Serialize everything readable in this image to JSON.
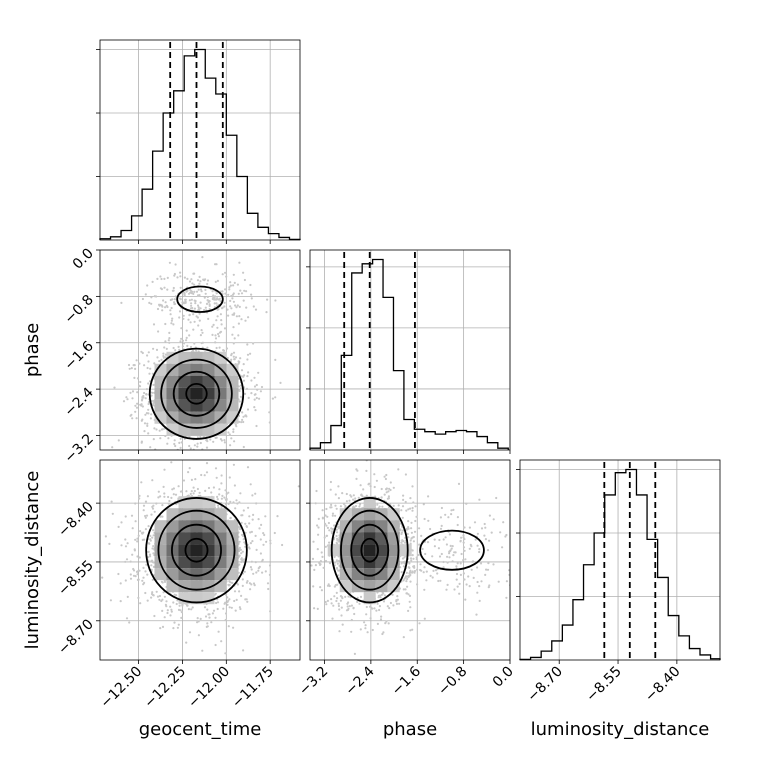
{
  "chart_data": {
    "type": "corner",
    "parameters": [
      "geocent_time",
      "phase",
      "luminosity_distance"
    ],
    "xlabels": [
      "geocent_time",
      "phase",
      "luminosity_distance"
    ],
    "ylabels": [
      "",
      "phase",
      "luminosity_distance"
    ],
    "ranges": {
      "geocent_time": [
        -12.72,
        -11.58
      ],
      "phase": [
        -3.45,
        0.0
      ],
      "luminosity_distance": [
        -8.8,
        -8.29
      ]
    },
    "ticks": {
      "geocent_time": [
        {
          "value": -12.5,
          "label": "−12.50"
        },
        {
          "value": -12.25,
          "label": "−12.25"
        },
        {
          "value": -12.0,
          "label": "−12.00"
        },
        {
          "value": -11.75,
          "label": "−11.75"
        }
      ],
      "phase": [
        {
          "value": -3.2,
          "label": "−3.2"
        },
        {
          "value": -2.4,
          "label": "−2.4"
        },
        {
          "value": -1.6,
          "label": "−1.6"
        },
        {
          "value": -0.8,
          "label": "−0.8"
        },
        {
          "value": 0.0,
          "label": "0.0"
        }
      ],
      "luminosity_distance": [
        {
          "value": -8.7,
          "label": "−8.70"
        },
        {
          "value": -8.55,
          "label": "−8.55"
        },
        {
          "value": -8.4,
          "label": "−8.40"
        }
      ]
    },
    "grid": true,
    "quantiles": {
      "geocent_time": [
        -12.32,
        -12.17,
        -12.02
      ],
      "phase": [
        -2.86,
        -2.42,
        -1.64
      ],
      "luminosity_distance": [
        -8.585,
        -8.52,
        -8.455
      ]
    },
    "histograms": {
      "geocent_time": {
        "edges": [
          -12.72,
          -12.66,
          -12.6,
          -12.54,
          -12.48,
          -12.42,
          -12.36,
          -12.3,
          -12.24,
          -12.18,
          -12.12,
          -12.06,
          -12.0,
          -11.94,
          -11.88,
          -11.82,
          -11.76,
          -11.7,
          -11.64,
          -11.58
        ],
        "counts": [
          2,
          5,
          15,
          38,
          80,
          140,
          200,
          235,
          290,
          300,
          255,
          230,
          165,
          100,
          42,
          20,
          10,
          4,
          1
        ]
      },
      "phase": {
        "edges": [
          -3.45,
          -3.27,
          -3.09,
          -2.91,
          -2.73,
          -2.55,
          -2.37,
          -2.19,
          -2.01,
          -1.83,
          -1.65,
          -1.47,
          -1.29,
          -1.11,
          -0.93,
          -0.75,
          -0.57,
          -0.39,
          -0.21,
          -0.03
        ],
        "counts": [
          3,
          12,
          40,
          155,
          290,
          305,
          312,
          250,
          130,
          50,
          34,
          30,
          26,
          30,
          32,
          30,
          22,
          12,
          3
        ]
      },
      "luminosity_distance": {
        "edges": [
          -8.8,
          -8.773,
          -8.746,
          -8.719,
          -8.692,
          -8.665,
          -8.638,
          -8.611,
          -8.584,
          -8.557,
          -8.53,
          -8.503,
          -8.476,
          -8.449,
          -8.422,
          -8.395,
          -8.368,
          -8.341,
          -8.314,
          -8.29
        ],
        "counts": [
          1,
          4,
          14,
          30,
          55,
          95,
          150,
          200,
          260,
          295,
          300,
          260,
          190,
          130,
          70,
          38,
          18,
          8,
          2
        ]
      }
    },
    "density_peaks": {
      "geocent_time_phase": [
        {
          "x": -12.17,
          "y": -2.48,
          "sx": 0.13,
          "sy": 0.38,
          "w": 1.0
        },
        {
          "x": -12.15,
          "y": -0.85,
          "sx": 0.13,
          "sy": 0.22,
          "w": 0.18
        }
      ],
      "geocent_time_luminosity_distance": [
        {
          "x": -12.17,
          "y": -8.52,
          "sx": 0.14,
          "sy": 0.065,
          "w": 1.0
        }
      ],
      "phase_luminosity_distance": [
        {
          "x": -2.42,
          "y": -8.52,
          "sx": 0.32,
          "sy": 0.065,
          "w": 1.0
        },
        {
          "x": -1.0,
          "y": -8.52,
          "sx": 0.55,
          "sy": 0.05,
          "w": 0.12
        }
      ]
    }
  }
}
